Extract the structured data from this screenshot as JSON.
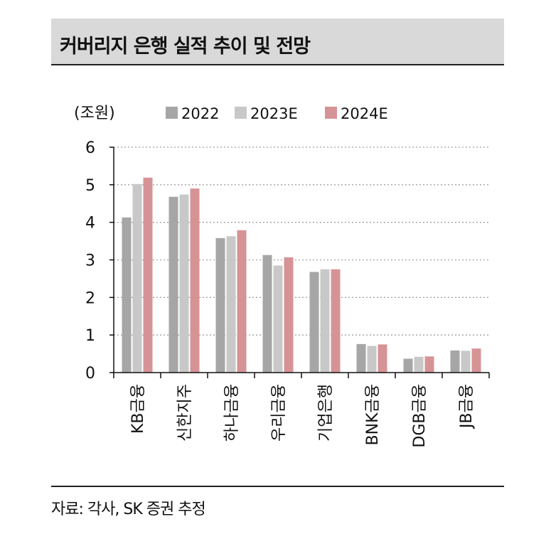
{
  "title": "커버리지 은행 실적 추이 및 전망",
  "source": "자료: 각사, SK 증권 추정",
  "chart_data": {
    "type": "bar",
    "unit_label": "(조원)",
    "categories": [
      "KB금융",
      "신한지주",
      "하나금융",
      "우리금융",
      "기업은행",
      "BNK금융",
      "DGB금융",
      "JB금융"
    ],
    "series": [
      {
        "name": "2022",
        "color": "#a6a6a6",
        "values": [
          4.13,
          4.68,
          3.58,
          3.13,
          2.68,
          0.76,
          0.37,
          0.59
        ]
      },
      {
        "name": "2023E",
        "color": "#c8c8c8",
        "values": [
          5.02,
          4.74,
          3.63,
          2.85,
          2.75,
          0.71,
          0.42,
          0.58
        ]
      },
      {
        "name": "2024E",
        "color": "#d69396",
        "values": [
          5.19,
          4.9,
          3.79,
          3.07,
          2.75,
          0.75,
          0.43,
          0.64
        ]
      }
    ],
    "ylim": [
      0,
      6
    ],
    "yticks": [
      "0",
      "1",
      "2",
      "3",
      "4",
      "5",
      "6"
    ],
    "grid": "dotted horizontal",
    "legend": "top"
  }
}
